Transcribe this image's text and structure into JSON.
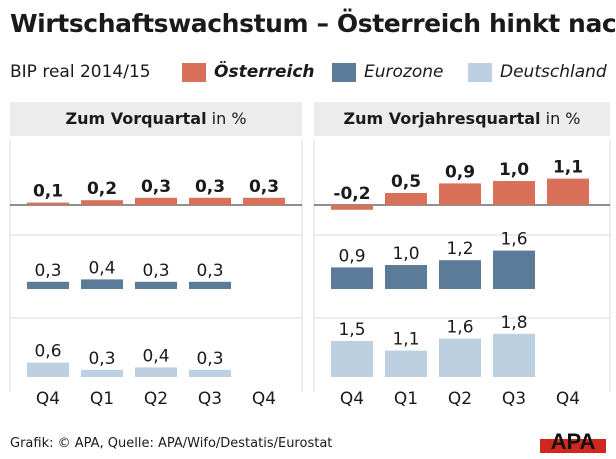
{
  "title": "Wirtschaftswachstum – Österreich hinkt nach",
  "legend": {
    "label": "BIP real 2014/15",
    "items": [
      {
        "name": "Österreich",
        "color": "#d9705a"
      },
      {
        "name": "Eurozone",
        "color": "#5b7b99"
      },
      {
        "name": "Deutschland",
        "color": "#bdd0e1"
      }
    ]
  },
  "panels": [
    {
      "title_bold": "Zum Vorquartal",
      "title_rest": " in %"
    },
    {
      "title_bold": "Zum Vorjahresquartal",
      "title_rest": " in %"
    }
  ],
  "chart_data": [
    {
      "type": "bar",
      "title": "Zum Vorquartal in %",
      "categories": [
        "Q4",
        "Q1",
        "Q2",
        "Q3",
        "Q4"
      ],
      "series": [
        {
          "name": "Österreich",
          "values": [
            0.1,
            0.2,
            0.3,
            0.3,
            0.3
          ],
          "labels": [
            "0,1",
            "0,2",
            "0,3",
            "0,3",
            "0,3"
          ]
        },
        {
          "name": "Eurozone",
          "values": [
            0.3,
            0.4,
            0.3,
            0.3,
            null
          ],
          "labels": [
            "0,3",
            "0,4",
            "0,3",
            "0,3",
            ""
          ]
        },
        {
          "name": "Deutschland",
          "values": [
            0.6,
            0.3,
            0.4,
            0.3,
            null
          ],
          "labels": [
            "0,6",
            "0,3",
            "0,4",
            "0,3",
            ""
          ]
        }
      ]
    },
    {
      "type": "bar",
      "title": "Zum Vorjahresquartal in %",
      "categories": [
        "Q4",
        "Q1",
        "Q2",
        "Q3",
        "Q4"
      ],
      "series": [
        {
          "name": "Österreich",
          "values": [
            -0.2,
            0.5,
            0.9,
            1.0,
            1.1
          ],
          "labels": [
            "-0,2",
            "0,5",
            "0,9",
            "1,0",
            "1,1"
          ]
        },
        {
          "name": "Eurozone",
          "values": [
            0.9,
            1.0,
            1.2,
            1.6,
            null
          ],
          "labels": [
            "0,9",
            "1,0",
            "1,2",
            "1,6",
            ""
          ]
        },
        {
          "name": "Deutschland",
          "values": [
            1.5,
            1.1,
            1.6,
            1.8,
            null
          ],
          "labels": [
            "1,5",
            "1,1",
            "1,6",
            "1,8",
            ""
          ]
        }
      ]
    }
  ],
  "source": "Grafik: © APA, Quelle: APA/Wifo/Destatis/Eurostat",
  "logo_text": "APA"
}
